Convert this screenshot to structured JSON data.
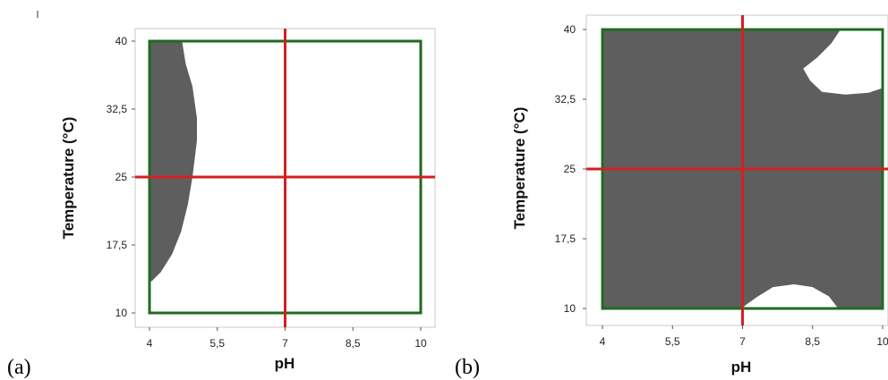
{
  "colors": {
    "region_fill": "#5e5e5e",
    "reference_line": "#d42020",
    "design_box": "#1f6b1f",
    "frame": "#c8c8c8"
  },
  "chart_data": [
    {
      "type": "area",
      "panel_label": "(a)",
      "xlabel": "pH",
      "ylabel": "Temperature (°C)",
      "xlim": [
        4,
        10
      ],
      "ylim": [
        10,
        40
      ],
      "x_ticks": [
        "4",
        "5,5",
        "7",
        "8,5",
        "10"
      ],
      "y_ticks": [
        "10",
        "17,5",
        "25",
        "32,5",
        "40"
      ],
      "reference_lines": {
        "x": 7,
        "y": 25
      },
      "design_space": {
        "x": [
          4,
          10
        ],
        "y": [
          10,
          40
        ]
      },
      "regions": [
        {
          "fill": "gray",
          "points": [
            [
              4.0,
              40.0
            ],
            [
              4.72,
              40.0
            ],
            [
              4.8,
              37.5
            ],
            [
              4.95,
              35.0
            ],
            [
              5.05,
              31.5
            ],
            [
              5.05,
              29.0
            ],
            [
              4.95,
              25.0
            ],
            [
              4.85,
              22.0
            ],
            [
              4.7,
              19.0
            ],
            [
              4.5,
              16.5
            ],
            [
              4.25,
              14.5
            ],
            [
              4.05,
              13.5
            ],
            [
              4.0,
              13.5
            ]
          ]
        }
      ]
    },
    {
      "type": "area",
      "panel_label": "(b)",
      "xlabel": "pH",
      "ylabel": "Temperature (°C)",
      "xlim": [
        4,
        10
      ],
      "ylim": [
        10,
        40
      ],
      "x_ticks": [
        "4",
        "5,5",
        "7",
        "8,5",
        "10"
      ],
      "y_ticks": [
        "10",
        "17,5",
        "25",
        "32,5",
        "40"
      ],
      "reference_lines": {
        "x": 7,
        "y": 25
      },
      "design_space": {
        "x": [
          4,
          10
        ],
        "y": [
          10,
          40
        ]
      },
      "regions": [
        {
          "fill": "gray",
          "points": [
            [
              4,
              10
            ],
            [
              10,
              10
            ],
            [
              10,
              40
            ],
            [
              4,
              40
            ]
          ]
        },
        {
          "fill": "white",
          "points": [
            [
              9.1,
              40.0
            ],
            [
              10.0,
              40.0
            ],
            [
              10.0,
              33.7
            ],
            [
              9.7,
              33.2
            ],
            [
              9.2,
              33.0
            ],
            [
              8.7,
              33.3
            ],
            [
              8.45,
              34.5
            ],
            [
              8.3,
              35.8
            ],
            [
              8.6,
              37.0
            ],
            [
              8.9,
              38.5
            ]
          ]
        },
        {
          "fill": "white",
          "points": [
            [
              7.0,
              10.0
            ],
            [
              9.05,
              10.0
            ],
            [
              8.85,
              11.3
            ],
            [
              8.5,
              12.3
            ],
            [
              8.1,
              12.6
            ],
            [
              7.65,
              12.3
            ],
            [
              7.3,
              11.2
            ],
            [
              7.05,
              10.3
            ]
          ]
        }
      ]
    }
  ]
}
